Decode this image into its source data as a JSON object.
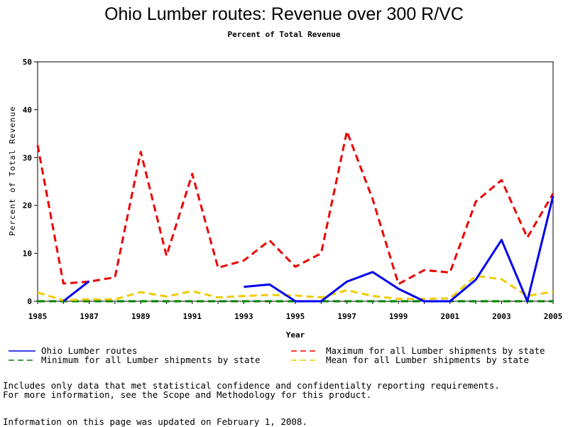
{
  "chart_data": {
    "type": "line",
    "title": "Ohio Lumber routes: Revenue over 300 R/VC",
    "subtitle": "Percent of Total Revenue",
    "xlabel": "Year",
    "ylabel": "Percent of Total Revenue",
    "xlim": [
      1985,
      2005
    ],
    "ylim": [
      0,
      50
    ],
    "x_ticks": [
      1985,
      1987,
      1989,
      1991,
      1993,
      1995,
      1997,
      1999,
      2001,
      2003,
      2005
    ],
    "y_ticks": [
      0,
      10,
      20,
      30,
      40,
      50
    ],
    "grid": false,
    "legend_position": "bottom",
    "x": [
      1985,
      1986,
      1987,
      1988,
      1989,
      1990,
      1991,
      1992,
      1993,
      1994,
      1995,
      1996,
      1997,
      1998,
      1999,
      2000,
      2001,
      2002,
      2003,
      2004,
      2005
    ],
    "series": [
      {
        "name": "Ohio Lumber routes",
        "color": "#0000ee",
        "dash": "solid",
        "values": [
          null,
          0,
          4.2,
          null,
          null,
          null,
          null,
          null,
          3.0,
          3.5,
          0,
          0,
          4.1,
          6.1,
          2.6,
          0,
          0,
          4.5,
          12.8,
          0,
          22.0
        ]
      },
      {
        "name": "Maximum for all Lumber shipments by state",
        "color": "#ee0000",
        "dash": "dashed",
        "values": [
          32.6,
          3.7,
          4.1,
          5.0,
          31.2,
          9.5,
          26.6,
          7.0,
          8.5,
          12.7,
          7.2,
          10.0,
          35.5,
          21.3,
          3.6,
          6.5,
          6.0,
          20.8,
          25.3,
          13.3,
          22.5
        ]
      },
      {
        "name": "Minimum for all Lumber shipments by state",
        "color": "#008000",
        "dash": "dashed",
        "values": [
          0,
          0,
          0,
          0,
          0,
          0,
          0,
          0,
          0,
          0,
          0,
          0,
          0,
          0,
          0,
          0,
          0,
          0,
          0,
          0,
          0
        ]
      },
      {
        "name": "Mean for all Lumber shipments by state",
        "color": "#f0cc00",
        "dash": "dashed",
        "values": [
          1.8,
          0.2,
          0.4,
          0.4,
          1.9,
          1.0,
          2.1,
          0.8,
          1.1,
          1.3,
          1.2,
          0.8,
          2.3,
          1.1,
          0.5,
          0.5,
          0.6,
          5.3,
          4.6,
          1.1,
          2.0
        ]
      }
    ]
  },
  "notes": {
    "line1": "Includes only data that met statistical confidence and confidentialty reporting requirements.",
    "line2": "For more information, see the Scope and Methodology for this product.",
    "updated": "Information on this page was updated on February 1, 2008."
  }
}
